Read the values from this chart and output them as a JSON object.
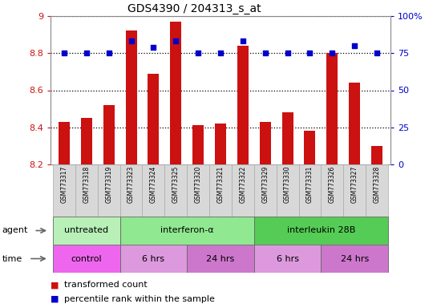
{
  "title": "GDS4390 / 204313_s_at",
  "samples": [
    "GSM773317",
    "GSM773318",
    "GSM773319",
    "GSM773323",
    "GSM773324",
    "GSM773325",
    "GSM773320",
    "GSM773321",
    "GSM773322",
    "GSM773329",
    "GSM773330",
    "GSM773331",
    "GSM773326",
    "GSM773327",
    "GSM773328"
  ],
  "transformed_count": [
    8.43,
    8.45,
    8.52,
    8.92,
    8.69,
    8.97,
    8.41,
    8.42,
    8.84,
    8.43,
    8.48,
    8.38,
    8.8,
    8.64,
    8.3
  ],
  "percentile_rank": [
    75,
    75,
    75,
    83,
    79,
    83,
    75,
    75,
    83,
    75,
    75,
    75,
    75,
    80,
    75
  ],
  "ylim_left": [
    8.2,
    9.0
  ],
  "ylim_right": [
    0,
    100
  ],
  "yticks_left": [
    8.2,
    8.4,
    8.6,
    8.8,
    9
  ],
  "yticks_right": [
    0,
    25,
    50,
    75,
    100
  ],
  "bar_color": "#cc1111",
  "dot_color": "#0000cc",
  "agent_groups": [
    {
      "label": "untreated",
      "start": 0,
      "end": 3,
      "color": "#b8f0b8"
    },
    {
      "label": "interferon-α",
      "start": 3,
      "end": 9,
      "color": "#90e890"
    },
    {
      "label": "interleukin 28B",
      "start": 9,
      "end": 15,
      "color": "#55cc55"
    }
  ],
  "time_groups": [
    {
      "label": "control",
      "start": 0,
      "end": 3,
      "color": "#ee66ee"
    },
    {
      "label": "6 hrs",
      "start": 3,
      "end": 6,
      "color": "#dd99dd"
    },
    {
      "label": "24 hrs",
      "start": 6,
      "end": 9,
      "color": "#cc77cc"
    },
    {
      "label": "6 hrs",
      "start": 9,
      "end": 12,
      "color": "#dd99dd"
    },
    {
      "label": "24 hrs",
      "start": 12,
      "end": 15,
      "color": "#cc77cc"
    }
  ],
  "bg_color": "#ffffff",
  "sample_box_color": "#d8d8d8",
  "sample_box_edge": "#aaaaaa"
}
